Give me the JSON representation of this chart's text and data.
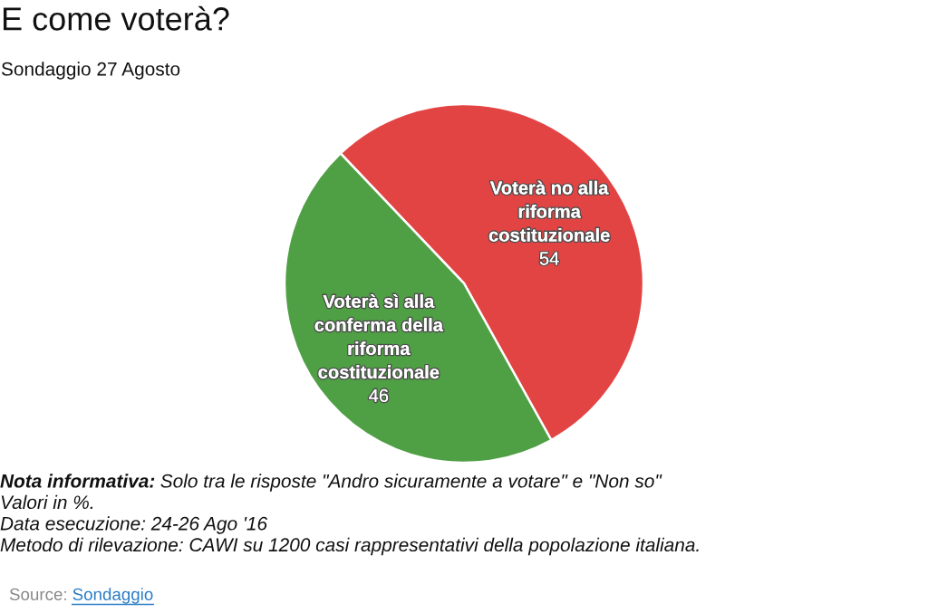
{
  "chart_data": {
    "type": "pie",
    "title": "E come voterà?",
    "subtitle": "Sondaggio 27 Agosto",
    "categories": [
      "Voterà no alla riforma costituzionale",
      "Voterà sì alla conferma della riforma costituzionale"
    ],
    "values": [
      54,
      46
    ],
    "colors": [
      "#e24444",
      "#4f9f45"
    ],
    "data_labels": true,
    "annotations": [
      "Nota informativa: Solo tra le risposte \"Andro sicuramente a votare\" e \"Non so\"",
      "Valori in %.",
      "Data esecuzione: 24-26 Ago '16",
      "Metodo di rilevazione: CAWI su 1200 casi rappresentativi della popolazione italiana.",
      "Source: Sondaggio"
    ]
  }
}
